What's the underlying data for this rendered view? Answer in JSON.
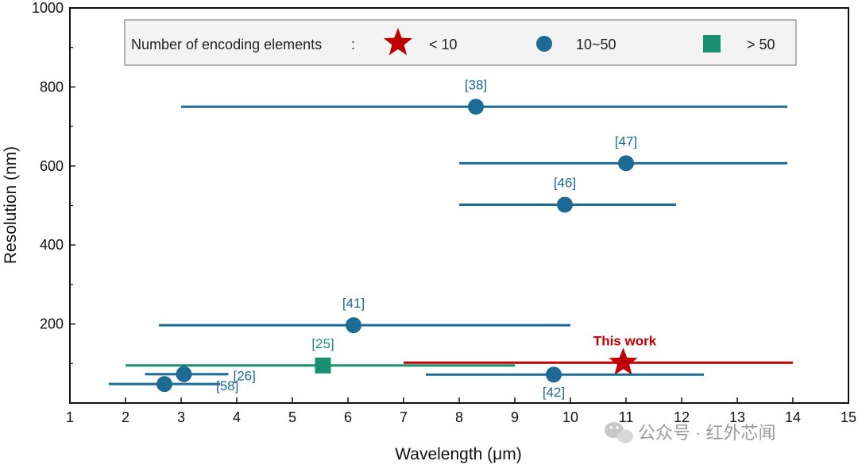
{
  "chart_data": {
    "type": "scatter",
    "xlabel": "Wavelength (μm)",
    "ylabel": "Resolution (nm)",
    "xlim": [
      1,
      15
    ],
    "ylim": [
      0,
      1000
    ],
    "x_ticks": [
      1,
      2,
      3,
      4,
      5,
      6,
      7,
      8,
      9,
      10,
      11,
      12,
      13,
      14,
      15
    ],
    "y_ticks": [
      200,
      400,
      600,
      800,
      1000
    ],
    "legend": {
      "title": "Number of encoding elements",
      "separator": ":",
      "placement": "top-left",
      "entries": [
        {
          "label": "< 10",
          "marker": "star",
          "color": "#c00000"
        },
        {
          "label": "10~50",
          "marker": "circle",
          "color": "#1d6a96"
        },
        {
          "label": "> 50",
          "marker": "square",
          "color": "#1a9070"
        }
      ]
    },
    "series": [
      {
        "label": "[38]",
        "x": 8.3,
        "y": 750,
        "x_range": [
          3.0,
          13.9
        ],
        "marker": "circle",
        "color": "#1d6a96"
      },
      {
        "label": "[47]",
        "x": 11.0,
        "y": 607,
        "x_range": [
          8.0,
          13.9
        ],
        "marker": "circle",
        "color": "#1d6a96"
      },
      {
        "label": "[46]",
        "x": 9.9,
        "y": 502,
        "x_range": [
          8.0,
          11.9
        ],
        "marker": "circle",
        "color": "#1d6a96"
      },
      {
        "label": "[41]",
        "x": 6.1,
        "y": 197,
        "x_range": [
          2.6,
          10.0
        ],
        "marker": "circle",
        "color": "#1d6a96"
      },
      {
        "label": "[25]",
        "x": 5.55,
        "y": 95,
        "x_range": [
          2.0,
          9.0
        ],
        "marker": "square",
        "color": "#1a9070"
      },
      {
        "label": "This work",
        "x": 10.95,
        "y": 102,
        "x_range": [
          7.0,
          14.0
        ],
        "marker": "star",
        "color": "#c00000"
      },
      {
        "label": "[26]",
        "x": 3.05,
        "y": 73,
        "x_range": [
          2.35,
          3.85
        ],
        "marker": "circle",
        "color": "#1d6a96"
      },
      {
        "label": "[42]",
        "x": 9.7,
        "y": 72,
        "x_range": [
          7.4,
          12.4
        ],
        "marker": "circle",
        "color": "#1d6a96"
      },
      {
        "label": "[58]",
        "x": 2.7,
        "y": 48,
        "x_range": [
          1.7,
          3.7
        ],
        "marker": "circle",
        "color": "#1d6a96"
      }
    ]
  },
  "watermark": {
    "text": "公众号 · 红外芯闻",
    "icon": "wechat-icon"
  }
}
